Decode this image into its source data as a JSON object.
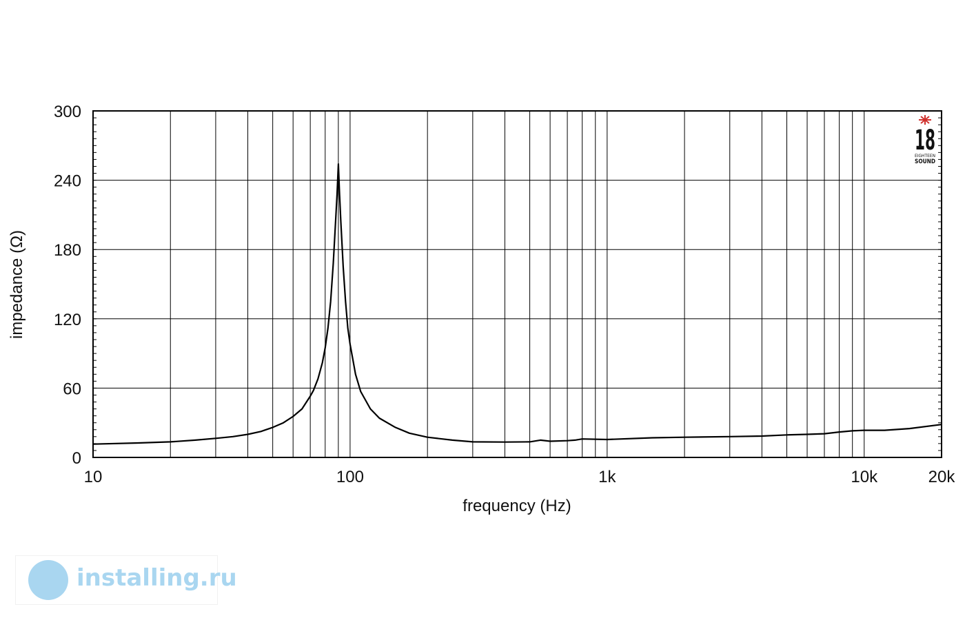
{
  "chart_data": {
    "type": "line",
    "x_scale": "log",
    "xlim": [
      10,
      20000
    ],
    "ylim": [
      0,
      300
    ],
    "xlabel": "frequency (Hz)",
    "ylabel": "impedance (Ω)",
    "x_tick_labels": [
      "10",
      "100",
      "1k",
      "10k",
      "20k"
    ],
    "x_tick_values": [
      10,
      100,
      1000,
      10000,
      20000
    ],
    "y_tick_labels": [
      "0",
      "60",
      "120",
      "180",
      "240",
      "300"
    ],
    "y_tick_values": [
      0,
      60,
      120,
      180,
      240,
      300
    ],
    "grid": true,
    "series": [
      {
        "x": [
          10,
          15,
          20,
          25,
          30,
          35,
          40,
          45,
          50,
          55,
          60,
          65,
          70,
          72,
          75,
          78,
          80,
          82,
          84,
          86,
          88,
          89,
          90,
          91,
          92,
          94,
          96,
          98,
          100,
          105,
          110,
          120,
          130,
          150,
          170,
          200,
          250,
          300,
          400,
          500,
          550,
          600,
          700,
          750,
          800,
          1000,
          1500,
          2000,
          3000,
          4000,
          5000,
          6000,
          7000,
          8000,
          9000,
          10000,
          12000,
          15000,
          20000
        ],
        "y": [
          11.5,
          12.5,
          13.5,
          15,
          16.5,
          18,
          20,
          22.5,
          26,
          30,
          35.5,
          42,
          53,
          58,
          68,
          82,
          95,
          112,
          135,
          168,
          208,
          228,
          254,
          228,
          205,
          165,
          135,
          112,
          98,
          72,
          57,
          42,
          34,
          26,
          21,
          17.5,
          15,
          13.5,
          13.3,
          13.5,
          15,
          14,
          14.5,
          15,
          16,
          15.5,
          17,
          17.5,
          18,
          18.5,
          19.5,
          20,
          20.5,
          22,
          23,
          23.5,
          23.5,
          25,
          28.5
        ]
      }
    ]
  },
  "logo": {
    "number": "18",
    "line1": "EIGHTEEN",
    "line2": "SOUND",
    "star_color": "#d0312d"
  },
  "watermark": {
    "text": "installing.ru",
    "color": "#a9d6f0"
  },
  "colors": {
    "line": "#000000",
    "grid": "#000000"
  }
}
